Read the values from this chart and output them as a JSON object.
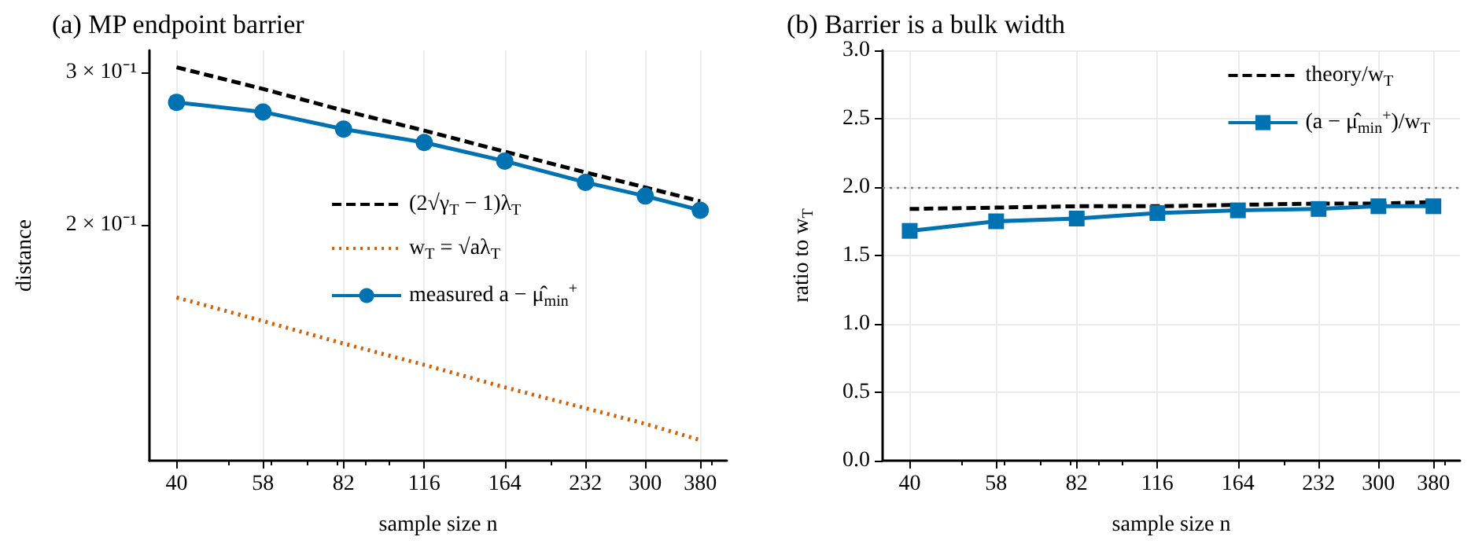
{
  "chart_data": [
    {
      "type": "line",
      "title": "(a) MP endpoint barrier",
      "xlabel": "sample size n",
      "ylabel": "distance",
      "log": "xy",
      "x": [
        40,
        58,
        82,
        116,
        164,
        232,
        300,
        380
      ],
      "xlim": [
        35.6,
        426
      ],
      "xticks": [
        40,
        58,
        82,
        116,
        164,
        232,
        300,
        380,
        {
          "value": 50,
          "label": null
        },
        {
          "value": 60,
          "label": null
        },
        {
          "value": 70,
          "label": null
        },
        {
          "value": 80,
          "label": null
        },
        {
          "value": 90,
          "label": null
        },
        {
          "value": 100,
          "label": null
        },
        {
          "value": 200,
          "label": null
        },
        {
          "value": 400,
          "label": null
        }
      ],
      "ylim": [
        0.107,
        0.318
      ],
      "yticks": [
        {
          "value": 0.2,
          "label": "2 × 10⁻¹"
        },
        {
          "value": 0.3,
          "label": "3 × 10⁻¹"
        }
      ],
      "grid": "x",
      "legend": "right",
      "series": [
        {
          "name": "(2√γ$_{T}$ − 1)λ$_{T}$",
          "color": "#000000",
          "line_style": "dashed",
          "marker": "none",
          "values": [
            0.304,
            0.287,
            0.271,
            0.257,
            0.243,
            0.23,
            0.221,
            0.213
          ]
        },
        {
          "name": "w$_{T}$ = √aλ$_{T}$",
          "color": "#d55e00",
          "line_style": "dotted",
          "marker": "none",
          "values": [
            0.165,
            0.155,
            0.146,
            0.138,
            0.13,
            0.123,
            0.118,
            0.113
          ]
        },
        {
          "name": "measured a − μ̂$_{min}$$^{+}$",
          "color": "#0072b2",
          "line_style": "solid",
          "marker": "circle",
          "values": [
            0.277,
            0.27,
            0.258,
            0.249,
            0.237,
            0.224,
            0.216,
            0.208
          ],
          "errors": [
            0.004,
            null,
            null,
            null,
            null,
            null,
            null,
            null
          ]
        }
      ]
    },
    {
      "type": "line",
      "title": "(b) Barrier is a bulk width",
      "xlabel": "sample size n",
      "ylabel": "ratio to w$_{T}$",
      "log": "x",
      "x": [
        40,
        58,
        82,
        116,
        164,
        232,
        300,
        380
      ],
      "xlim": [
        35.6,
        426
      ],
      "xticks": [
        40,
        58,
        82,
        116,
        164,
        232,
        300,
        380,
        {
          "value": 50,
          "label": null
        },
        {
          "value": 60,
          "label": null
        },
        {
          "value": 70,
          "label": null
        },
        {
          "value": 80,
          "label": null
        },
        {
          "value": 90,
          "label": null
        },
        {
          "value": 100,
          "label": null
        },
        {
          "value": 200,
          "label": null
        },
        {
          "value": 400,
          "label": null
        }
      ],
      "ylim": [
        0,
        3
      ],
      "yticks": [
        {
          "value": 0,
          "label": "0.0"
        },
        {
          "value": 0.5,
          "label": "0.5"
        },
        {
          "value": 1,
          "label": "1.0"
        },
        {
          "value": 1.5,
          "label": "1.5"
        },
        {
          "value": 2,
          "label": "2.0"
        },
        {
          "value": 2.5,
          "label": "2.5"
        },
        {
          "value": 3,
          "label": "3.0"
        }
      ],
      "grid": true,
      "legend": "top right",
      "ref_lines": [
        {
          "axis": "y",
          "value": 2,
          "color": "#808080",
          "line_style": "dotted"
        }
      ],
      "series": [
        {
          "name": "theory/w$_{T}$",
          "color": "#000000",
          "line_style": "dashed",
          "marker": "none",
          "values": [
            1.84,
            1.85,
            1.86,
            1.86,
            1.87,
            1.88,
            1.88,
            1.89
          ]
        },
        {
          "name": "(a − μ̂$_{min}$$^{+}$)/w$_{T}$",
          "color": "#0072b2",
          "line_style": "solid",
          "marker": "square",
          "values": [
            1.68,
            1.75,
            1.77,
            1.81,
            1.83,
            1.84,
            1.86,
            1.86
          ],
          "errors": [
            0.02,
            null,
            null,
            null,
            null,
            null,
            null,
            null
          ]
        }
      ]
    }
  ]
}
